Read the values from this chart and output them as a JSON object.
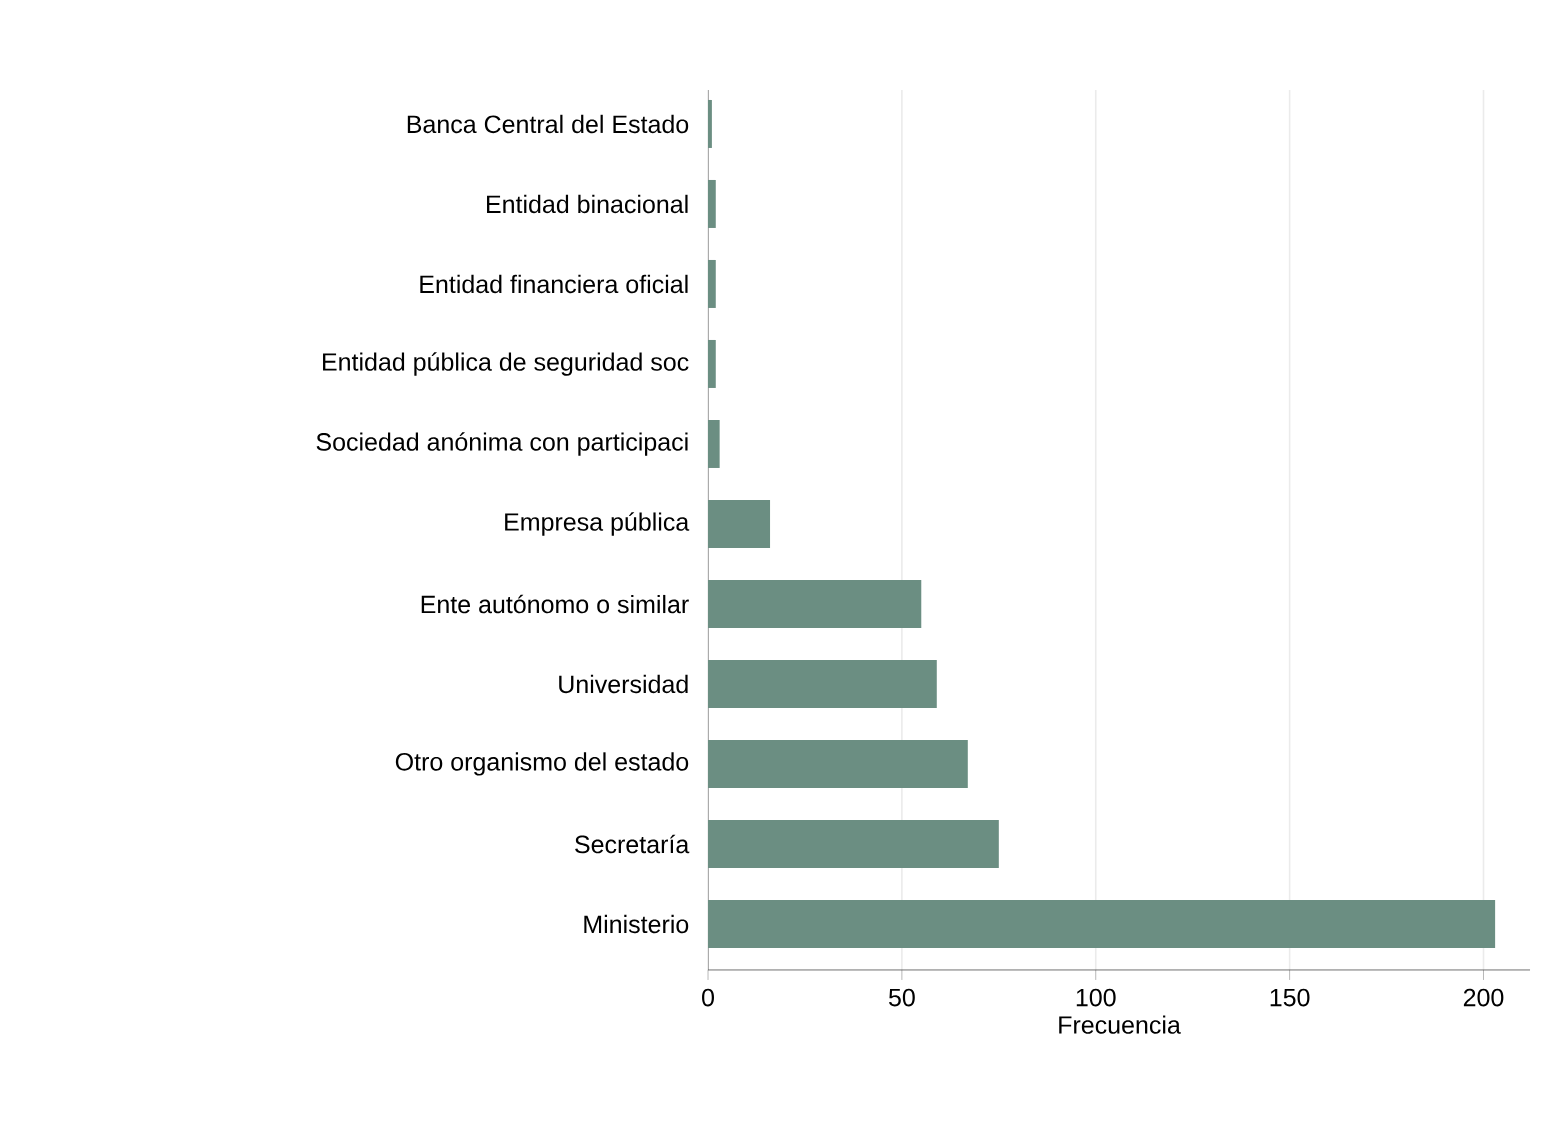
{
  "chart_data": {
    "type": "bar",
    "orientation": "horizontal",
    "categories": [
      "Banca Central del Estado",
      "Entidad binacional",
      "Entidad financiera oficial",
      "Entidad pública de seguridad soc",
      "Sociedad anónima con participaci",
      "Empresa pública",
      "Ente autónomo o similar",
      "Universidad",
      "Otro organismo del estado",
      "Secretaría",
      "Ministerio"
    ],
    "values": [
      1,
      2,
      2,
      2,
      3,
      16,
      55,
      59,
      67,
      75,
      203
    ],
    "color": "#6b8e82",
    "xlabel": "Frecuencia",
    "xlim": [
      0,
      212
    ],
    "xticks": [
      0,
      50,
      100,
      150,
      200
    ],
    "grid": "x"
  }
}
